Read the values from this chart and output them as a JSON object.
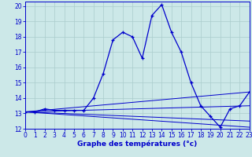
{
  "title": "Graphe des températures (°c)",
  "bg_color": "#cce8e8",
  "grid_color": "#aacccc",
  "line_color": "#0000cc",
  "xlim": [
    0,
    23
  ],
  "ylim": [
    12,
    20.3
  ],
  "yticks": [
    12,
    13,
    14,
    15,
    16,
    17,
    18,
    19,
    20
  ],
  "xticks": [
    0,
    1,
    2,
    3,
    4,
    5,
    6,
    7,
    8,
    9,
    10,
    11,
    12,
    13,
    14,
    15,
    16,
    17,
    18,
    19,
    20,
    21,
    22,
    23
  ],
  "series_main": {
    "x": [
      0,
      1,
      2,
      3,
      4,
      5,
      6,
      7,
      8,
      9,
      10,
      11,
      12,
      13,
      14,
      15,
      16,
      17,
      18,
      19,
      20,
      21,
      22,
      23
    ],
    "y": [
      13.1,
      13.1,
      13.3,
      13.2,
      13.2,
      13.2,
      13.2,
      14.0,
      15.6,
      17.8,
      18.3,
      18.0,
      16.6,
      19.4,
      20.1,
      18.3,
      17.0,
      15.0,
      13.5,
      12.8,
      12.1,
      13.3,
      13.5,
      14.4
    ]
  },
  "series_line1": {
    "x": [
      0,
      23
    ],
    "y": [
      13.1,
      14.4
    ]
  },
  "series_line2": {
    "x": [
      0,
      23
    ],
    "y": [
      13.1,
      13.5
    ]
  },
  "series_line3": {
    "x": [
      0,
      23
    ],
    "y": [
      13.1,
      12.5
    ]
  },
  "series_line4": {
    "x": [
      0,
      23
    ],
    "y": [
      13.1,
      12.1
    ]
  }
}
